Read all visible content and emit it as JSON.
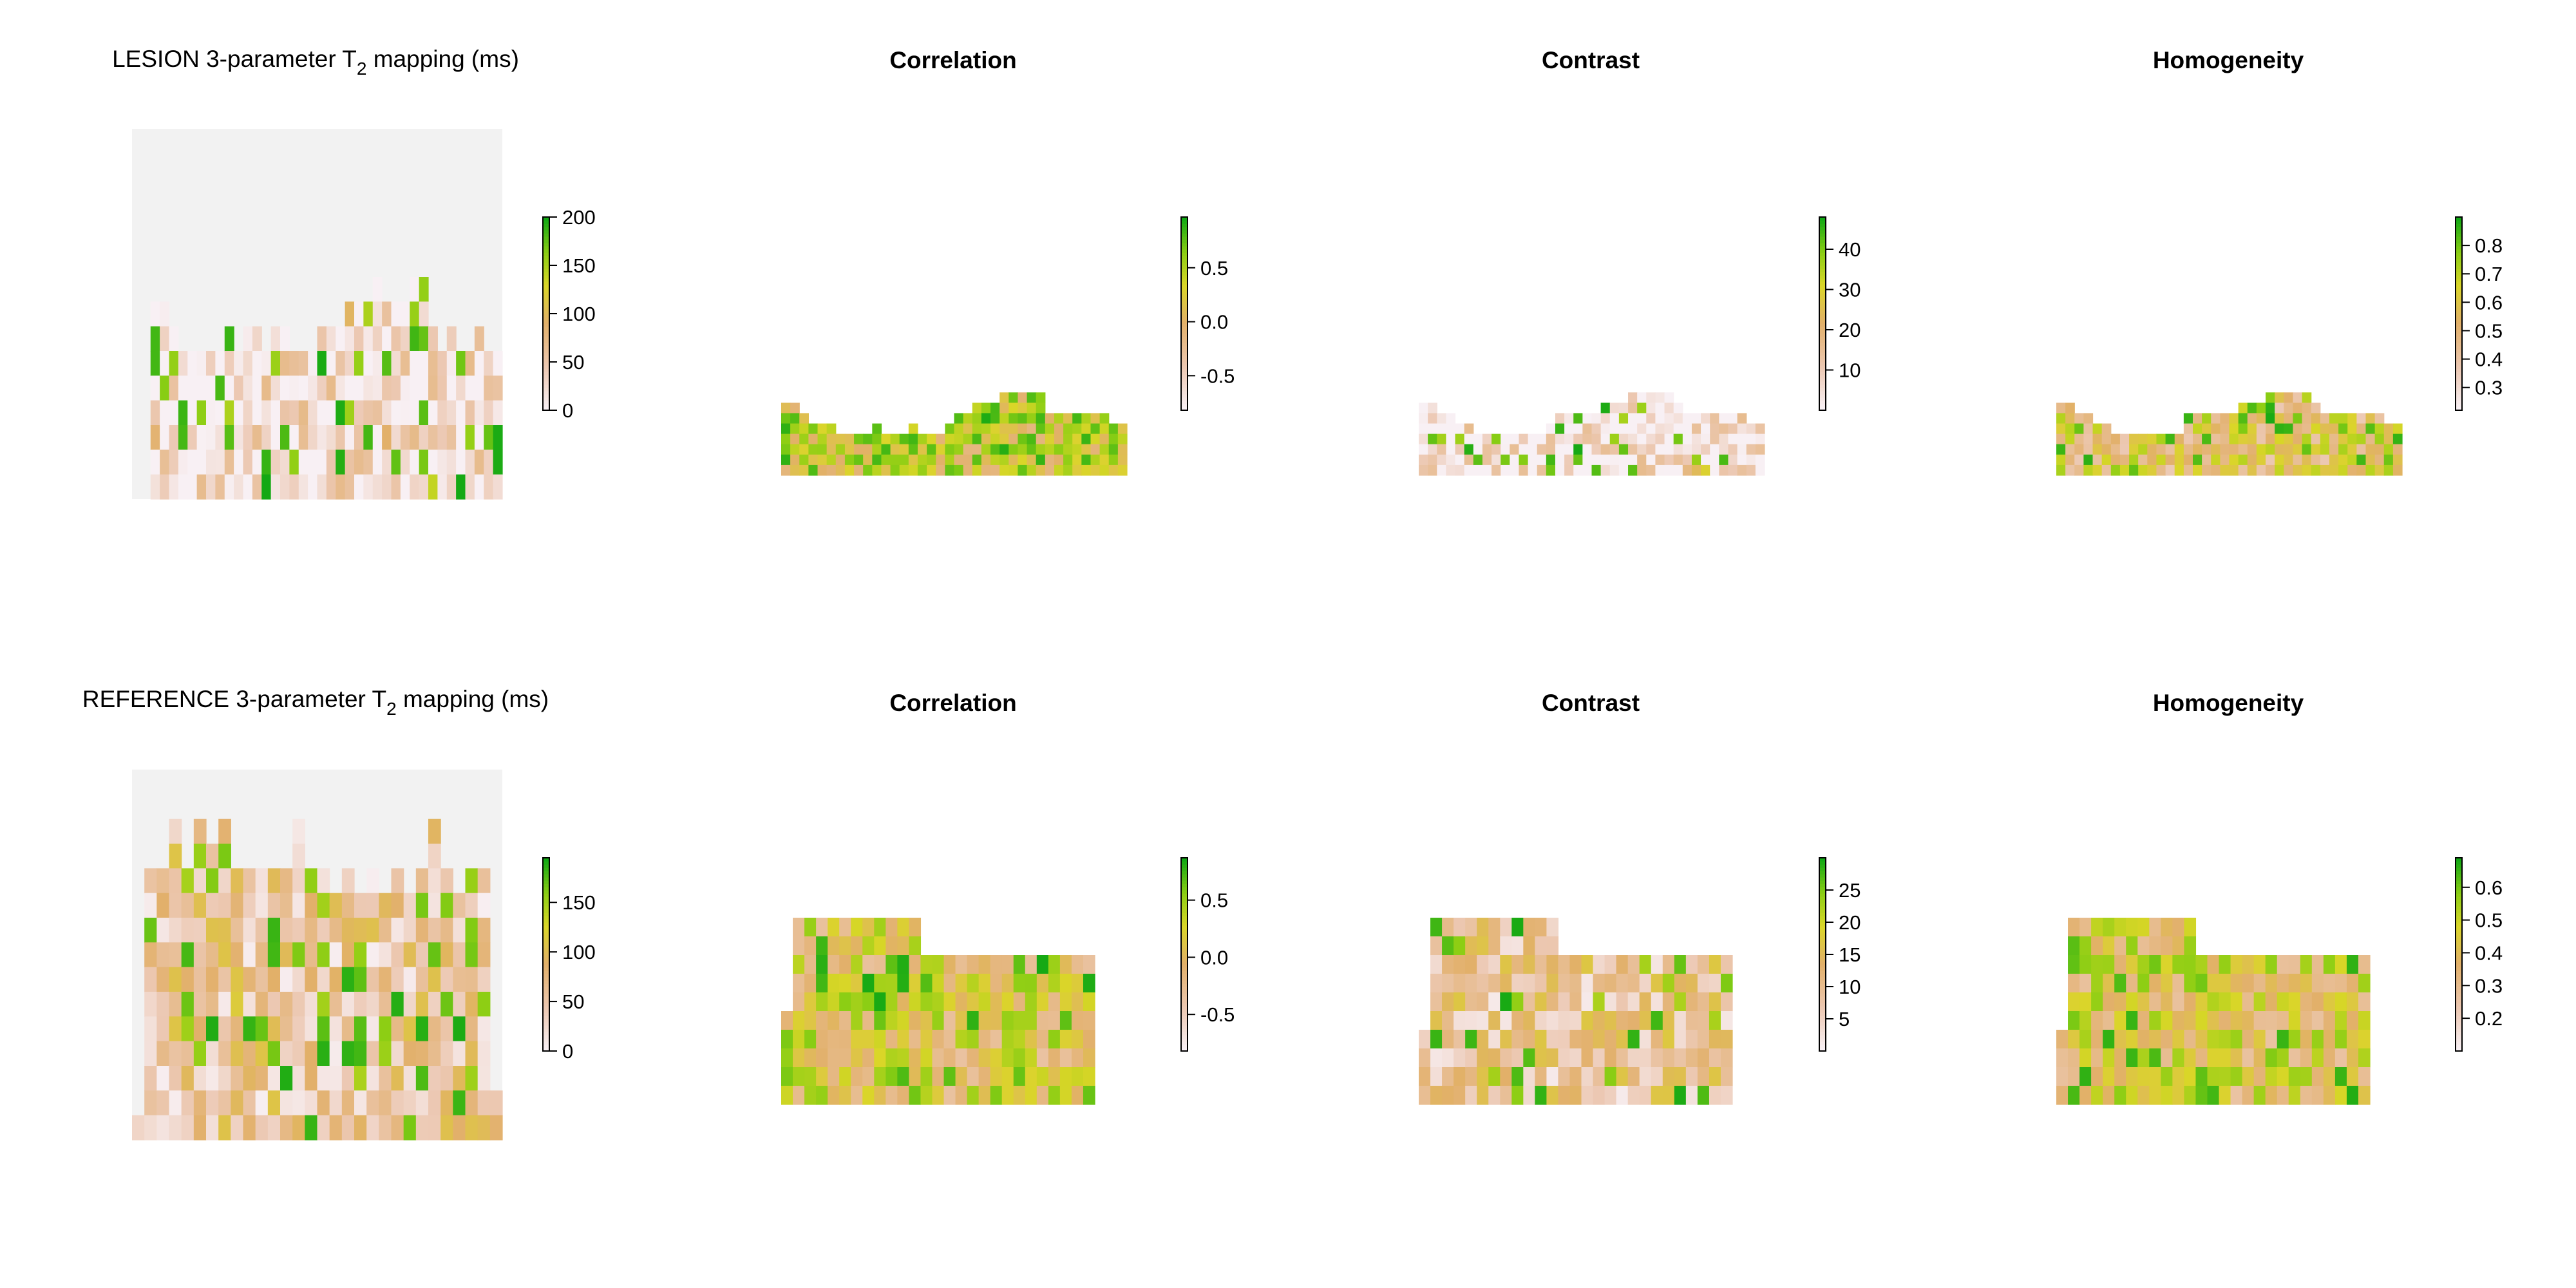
{
  "chart_data": [
    {
      "type": "heatmap",
      "title_pre": "LESION 3-parameter T",
      "title_sub": "2",
      "title_post": " mapping (ms)",
      "bold_title": false,
      "has_background": true,
      "background_color": "#f2f2f2",
      "colorbar_ticks": [
        "0",
        "50",
        "100",
        "150",
        "200"
      ],
      "colorbar_tick_values": [
        0,
        50,
        100,
        150,
        200
      ],
      "colorbar_range": [
        0,
        200
      ],
      "value_range": [
        0,
        200
      ],
      "column_count": 40,
      "row_count": 15,
      "column_top_rows": [
        15,
        15,
        7,
        7,
        8,
        9,
        9,
        9,
        9,
        9,
        8,
        9,
        8,
        8,
        9,
        8,
        8,
        9,
        9,
        9,
        8,
        8,
        8,
        7,
        7,
        7,
        6,
        7,
        7,
        7,
        6,
        6,
        8,
        9,
        8,
        9,
        9,
        8,
        9,
        9
      ],
      "base_value": 15,
      "hot_cells": [
        {
          "col": 21,
          "row": 7,
          "value": 185
        },
        {
          "col": 23,
          "row": 7,
          "value": 95
        },
        {
          "col": 31,
          "row": 13,
          "value": 170
        },
        {
          "col": 32,
          "row": 14,
          "value": 140
        },
        {
          "col": 27,
          "row": 12,
          "value": 90
        },
        {
          "col": 2,
          "row": 12,
          "value": 85
        },
        {
          "col": 1,
          "row": 14,
          "value": 80
        }
      ]
    },
    {
      "type": "heatmap",
      "title": "Correlation",
      "bold_title": true,
      "has_background": false,
      "colorbar_ticks": [
        "-0.5",
        "0.0",
        "0.5"
      ],
      "colorbar_tick_values": [
        -0.5,
        0.0,
        0.5
      ],
      "colorbar_range": [
        -0.82,
        0.97
      ],
      "value_range": [
        -0.82,
        0.97
      ],
      "column_count": 38,
      "row_count": 12,
      "column_top_rows": [
        5,
        5,
        6,
        7,
        7,
        7,
        8,
        8,
        8,
        8,
        7,
        8,
        8,
        8,
        7,
        8,
        8,
        8,
        7,
        6,
        6,
        5,
        5,
        5,
        4,
        4,
        4,
        4,
        4,
        6,
        6,
        6,
        6,
        6,
        6,
        6,
        7,
        7
      ],
      "base_value": 0.35
    },
    {
      "type": "heatmap",
      "title": "Contrast",
      "bold_title": true,
      "has_background": false,
      "colorbar_ticks": [
        "10",
        "20",
        "30",
        "40"
      ],
      "colorbar_tick_values": [
        10,
        20,
        30,
        40
      ],
      "colorbar_range": [
        0,
        48
      ],
      "value_range": [
        0,
        48
      ],
      "column_count": 38,
      "row_count": 12,
      "column_top_rows": [
        5,
        5,
        6,
        6,
        7,
        7,
        8,
        8,
        8,
        8,
        8,
        8,
        8,
        8,
        7,
        6,
        6,
        6,
        6,
        6,
        5,
        5,
        5,
        4,
        4,
        4,
        4,
        4,
        5,
        6,
        6,
        6,
        6,
        6,
        6,
        6,
        7,
        7
      ],
      "base_value": 3,
      "hot_cells": [
        {
          "col": 30,
          "row": 10,
          "value": 38
        },
        {
          "col": 31,
          "row": 11,
          "value": 30
        },
        {
          "col": 30,
          "row": 11,
          "value": 24
        },
        {
          "col": 29,
          "row": 11,
          "value": 18
        }
      ]
    },
    {
      "type": "heatmap",
      "title": "Homogeneity",
      "bold_title": true,
      "has_background": false,
      "colorbar_ticks": [
        "0.3",
        "0.4",
        "0.5",
        "0.6",
        "0.7",
        "0.8"
      ],
      "colorbar_tick_values": [
        0.3,
        0.4,
        0.5,
        0.6,
        0.7,
        0.8
      ],
      "colorbar_range": [
        0.22,
        0.9
      ],
      "value_range": [
        0.22,
        0.9
      ],
      "column_count": 38,
      "row_count": 12,
      "column_top_rows": [
        5,
        5,
        6,
        6,
        7,
        7,
        8,
        8,
        8,
        8,
        8,
        8,
        8,
        8,
        6,
        6,
        6,
        6,
        6,
        6,
        5,
        5,
        5,
        4,
        4,
        4,
        4,
        4,
        5,
        6,
        6,
        6,
        6,
        6,
        6,
        6,
        7,
        7
      ],
      "base_value": 0.55
    },
    {
      "type": "heatmap",
      "title_pre": "REFERENCE 3-parameter T",
      "title_sub": "2",
      "title_post": " mapping (ms)",
      "bold_title": false,
      "has_background": true,
      "background_color": "#f2f2f2",
      "colorbar_ticks": [
        "0",
        "50",
        "100",
        "150"
      ],
      "colorbar_tick_values": [
        0,
        50,
        100,
        150
      ],
      "colorbar_range": [
        0,
        195
      ],
      "value_range": [
        0,
        195
      ],
      "column_count": 30,
      "row_count": 15,
      "column_top_rows": [
        14,
        4,
        4,
        2,
        4,
        2,
        3,
        2,
        4,
        4,
        4,
        4,
        4,
        2,
        4,
        4,
        5,
        4,
        5,
        4,
        5,
        4,
        5,
        4,
        2,
        4,
        5,
        4,
        4,
        13
      ],
      "base_value": 55,
      "hot_cells": [
        {
          "col": 4,
          "row": 7,
          "value": 180
        },
        {
          "col": 9,
          "row": 10,
          "value": 185
        },
        {
          "col": 10,
          "row": 10,
          "value": 170
        },
        {
          "col": 15,
          "row": 9,
          "value": 150
        },
        {
          "col": 18,
          "row": 10,
          "value": 175
        },
        {
          "col": 8,
          "row": 9,
          "value": 115
        }
      ]
    },
    {
      "type": "heatmap",
      "title": "Correlation",
      "bold_title": true,
      "has_background": false,
      "colorbar_ticks": [
        "-0.5",
        "0.0",
        "0.5"
      ],
      "colorbar_tick_values": [
        -0.5,
        0.0,
        0.5
      ],
      "colorbar_range": [
        -0.82,
        0.87
      ],
      "value_range": [
        -0.82,
        0.87
      ],
      "column_count": 27,
      "row_count": 10,
      "column_top_rows": [
        5,
        0,
        0,
        0,
        0,
        0,
        0,
        0,
        0,
        0,
        0,
        0,
        2,
        2,
        2,
        2,
        2,
        2,
        2,
        2,
        2,
        2,
        2,
        2,
        2,
        2,
        2
      ],
      "base_value": 0.1
    },
    {
      "type": "heatmap",
      "title": "Contrast",
      "bold_title": true,
      "has_background": false,
      "colorbar_ticks": [
        "5",
        "10",
        "15",
        "20",
        "25"
      ],
      "colorbar_tick_values": [
        5,
        10,
        15,
        20,
        25
      ],
      "colorbar_range": [
        0,
        30
      ],
      "value_range": [
        0,
        30
      ],
      "column_count": 27,
      "row_count": 10,
      "column_top_rows": [
        6,
        0,
        0,
        0,
        0,
        0,
        0,
        0,
        0,
        0,
        0,
        0,
        2,
        2,
        2,
        2,
        2,
        2,
        2,
        2,
        2,
        2,
        2,
        2,
        2,
        2,
        2
      ],
      "base_value": 9
    },
    {
      "type": "heatmap",
      "title": "Homogeneity",
      "bold_title": true,
      "has_background": false,
      "colorbar_ticks": [
        "0.2",
        "0.3",
        "0.4",
        "0.5",
        "0.6"
      ],
      "colorbar_tick_values": [
        0.2,
        0.3,
        0.4,
        0.5,
        0.6
      ],
      "colorbar_range": [
        0.1,
        0.69
      ],
      "value_range": [
        0.1,
        0.69
      ],
      "column_count": 27,
      "row_count": 10,
      "column_top_rows": [
        6,
        0,
        0,
        0,
        0,
        0,
        0,
        0,
        0,
        0,
        0,
        0,
        2,
        2,
        2,
        2,
        2,
        2,
        2,
        2,
        2,
        2,
        2,
        2,
        2,
        2,
        2
      ],
      "base_value": 0.42
    }
  ]
}
